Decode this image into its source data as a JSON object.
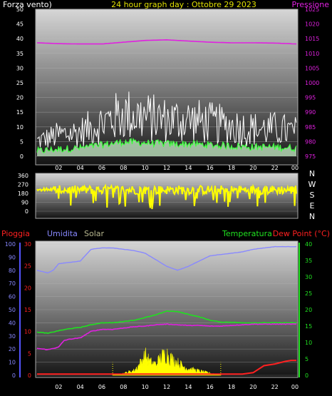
{
  "title": "24 hour graph day : Ottobre 29 2023",
  "chart_data": [
    {
      "type": "line",
      "panel": "wind-pressure",
      "left_label": "Forza vento)",
      "right_label": "Pressione",
      "left_ticks": [
        "0",
        "5",
        "10",
        "15",
        "20",
        "25",
        "30",
        "35",
        "40",
        "45",
        "50"
      ],
      "right_ticks": [
        "975",
        "980",
        "985",
        "990",
        "995",
        "1000",
        "1005",
        "1010",
        "1015",
        "1020",
        "1025"
      ],
      "ylim": [
        0,
        50
      ],
      "y2lim": [
        975,
        1025
      ],
      "x_ticks": [
        "02",
        "04",
        "06",
        "08",
        "10",
        "12",
        "14",
        "16",
        "18",
        "20",
        "22",
        "00"
      ],
      "colors": {
        "gust": "#ffffff",
        "speed": "#40ff40",
        "speed_fill": "#c8f0c8",
        "pressure": "#e020e0"
      },
      "pressure": {
        "x": [
          0,
          2,
          4,
          6,
          8,
          10,
          12,
          14,
          16,
          18,
          20,
          22,
          24
        ],
        "y": [
          1013.6,
          1013.3,
          1013.2,
          1013.2,
          1013.8,
          1014.4,
          1014.6,
          1014.2,
          1013.8,
          1013.6,
          1013.6,
          1013.5,
          1013.2
        ]
      },
      "gust_profile": {
        "x": [
          0,
          2,
          4,
          6,
          8,
          10,
          12,
          14,
          16,
          18,
          20,
          22,
          24
        ],
        "y": [
          5,
          7,
          8,
          11,
          14,
          13,
          12,
          12,
          11,
          10,
          9,
          9,
          8
        ]
      }
    },
    {
      "type": "scatter",
      "panel": "wind-direction",
      "left_ticks": [
        "0",
        "90",
        "180",
        "270",
        "360"
      ],
      "ylim": [
        0,
        360
      ],
      "compass": [
        "N",
        "W",
        "S",
        "E",
        "N"
      ],
      "color": "#ffff00"
    },
    {
      "type": "line",
      "panel": "temp-humidity-rain-solar",
      "labels": {
        "rain": "Pioggia",
        "humidity": "Umidita",
        "solar": "Solar",
        "temperature": "Temperatura",
        "dew": "Dew Point (°C)"
      },
      "humidity_ticks": [
        "0",
        "10",
        "20",
        "30",
        "40",
        "50",
        "60",
        "70",
        "80",
        "90",
        "100"
      ],
      "rain_ticks": [
        "0",
        "5",
        "10",
        "15",
        "20",
        "25",
        "30"
      ],
      "temp_ticks": [
        "0",
        "5",
        "10",
        "15",
        "20",
        "25",
        "30",
        "35",
        "40"
      ],
      "x_ticks": [
        "02",
        "04",
        "06",
        "08",
        "10",
        "12",
        "14",
        "16",
        "18",
        "20",
        "22",
        "00"
      ],
      "colors": {
        "humidity": "#8888ff",
        "rain": "#ff2020",
        "solar": "#ffff00",
        "temperature": "#20e020",
        "dew": "#e020e0"
      },
      "humidity": {
        "x": [
          0,
          1,
          1.5,
          2,
          3,
          4,
          5,
          6,
          7,
          8,
          9,
          10,
          11,
          12,
          13,
          14,
          15,
          16,
          17,
          18,
          19,
          20,
          21,
          22,
          23,
          24
        ],
        "y": [
          80,
          78,
          80,
          85,
          86,
          87,
          96,
          97,
          97,
          96,
          95,
          93,
          88,
          83,
          80,
          83,
          87,
          91,
          92,
          93,
          94,
          96,
          97,
          98,
          98,
          98
        ]
      },
      "temperature": {
        "x": [
          0,
          1,
          2,
          3,
          4,
          5,
          6,
          7,
          8,
          9,
          10,
          11,
          12,
          13,
          14,
          15,
          16,
          17,
          18,
          19,
          20,
          21,
          22,
          23,
          24
        ],
        "y": [
          13.2,
          12.8,
          13.6,
          14.2,
          14.6,
          15.4,
          16.0,
          16.0,
          16.4,
          16.8,
          17.6,
          18.4,
          19.6,
          19.4,
          18.6,
          17.8,
          16.8,
          16.2,
          16.2,
          16.0,
          16.0,
          16.0,
          16.0,
          16.0,
          16.0
        ]
      },
      "dew_point": {
        "x": [
          0,
          1,
          2,
          2.5,
          3,
          4,
          5,
          6,
          7,
          8,
          9,
          10,
          11,
          12,
          13,
          14,
          15,
          16,
          17,
          18,
          19,
          20,
          21,
          22,
          23,
          24
        ],
        "y": [
          8.2,
          7.8,
          8.6,
          10.6,
          11.0,
          11.4,
          13.4,
          14.0,
          14.0,
          14.4,
          14.8,
          15.0,
          15.4,
          15.6,
          15.4,
          15.2,
          15.2,
          15.0,
          15.0,
          15.2,
          15.4,
          15.6,
          15.6,
          15.6,
          15.6,
          15.6
        ]
      },
      "rain": {
        "x": [
          0,
          16,
          17,
          18,
          19,
          20,
          21,
          22,
          23,
          23.5,
          24
        ],
        "y": [
          0.3,
          0.3,
          0.3,
          0.3,
          0.3,
          0.6,
          2.2,
          2.6,
          3.2,
          3.4,
          3.4
        ]
      },
      "solar_envelope": {
        "x": [
          7,
          8,
          9,
          9.5,
          10,
          10.5,
          11,
          11.5,
          12,
          12.5,
          13,
          13.5,
          14,
          15,
          16,
          17
        ],
        "y": [
          0.1,
          0.6,
          1.6,
          3.6,
          6.6,
          4.2,
          3.6,
          6.0,
          7.2,
          5.2,
          4.2,
          3.0,
          2.2,
          1.4,
          0.7,
          0.1
        ]
      }
    }
  ]
}
